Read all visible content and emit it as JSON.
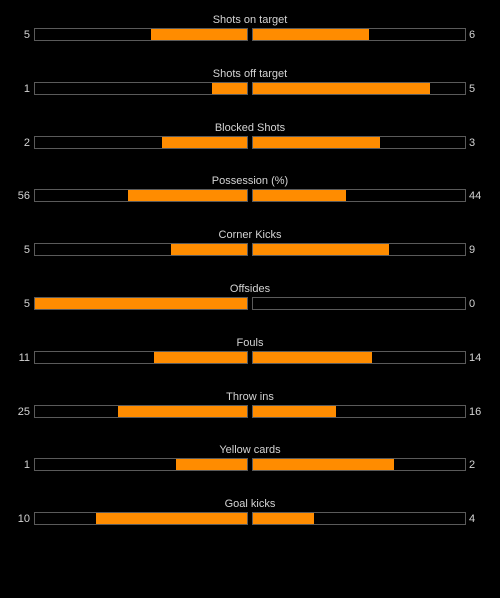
{
  "colors": {
    "background": "#000000",
    "fill": "#ff8c00",
    "track_border": "#5a5a5a",
    "text": "#d4d4d4"
  },
  "stats": [
    {
      "label": "Shots on target",
      "home": "5",
      "away": "6"
    },
    {
      "label": "Shots off target",
      "home": "1",
      "away": "5"
    },
    {
      "label": "Blocked Shots",
      "home": "2",
      "away": "3"
    },
    {
      "label": "Possession (%)",
      "home": "56",
      "away": "44"
    },
    {
      "label": "Corner Kicks",
      "home": "5",
      "away": "9"
    },
    {
      "label": "Offsides",
      "home": "5",
      "away": "0"
    },
    {
      "label": "Fouls",
      "home": "11",
      "away": "14"
    },
    {
      "label": "Throw ins",
      "home": "25",
      "away": "16"
    },
    {
      "label": "Yellow cards",
      "home": "1",
      "away": "2"
    },
    {
      "label": "Goal kicks",
      "home": "10",
      "away": "4"
    }
  ]
}
